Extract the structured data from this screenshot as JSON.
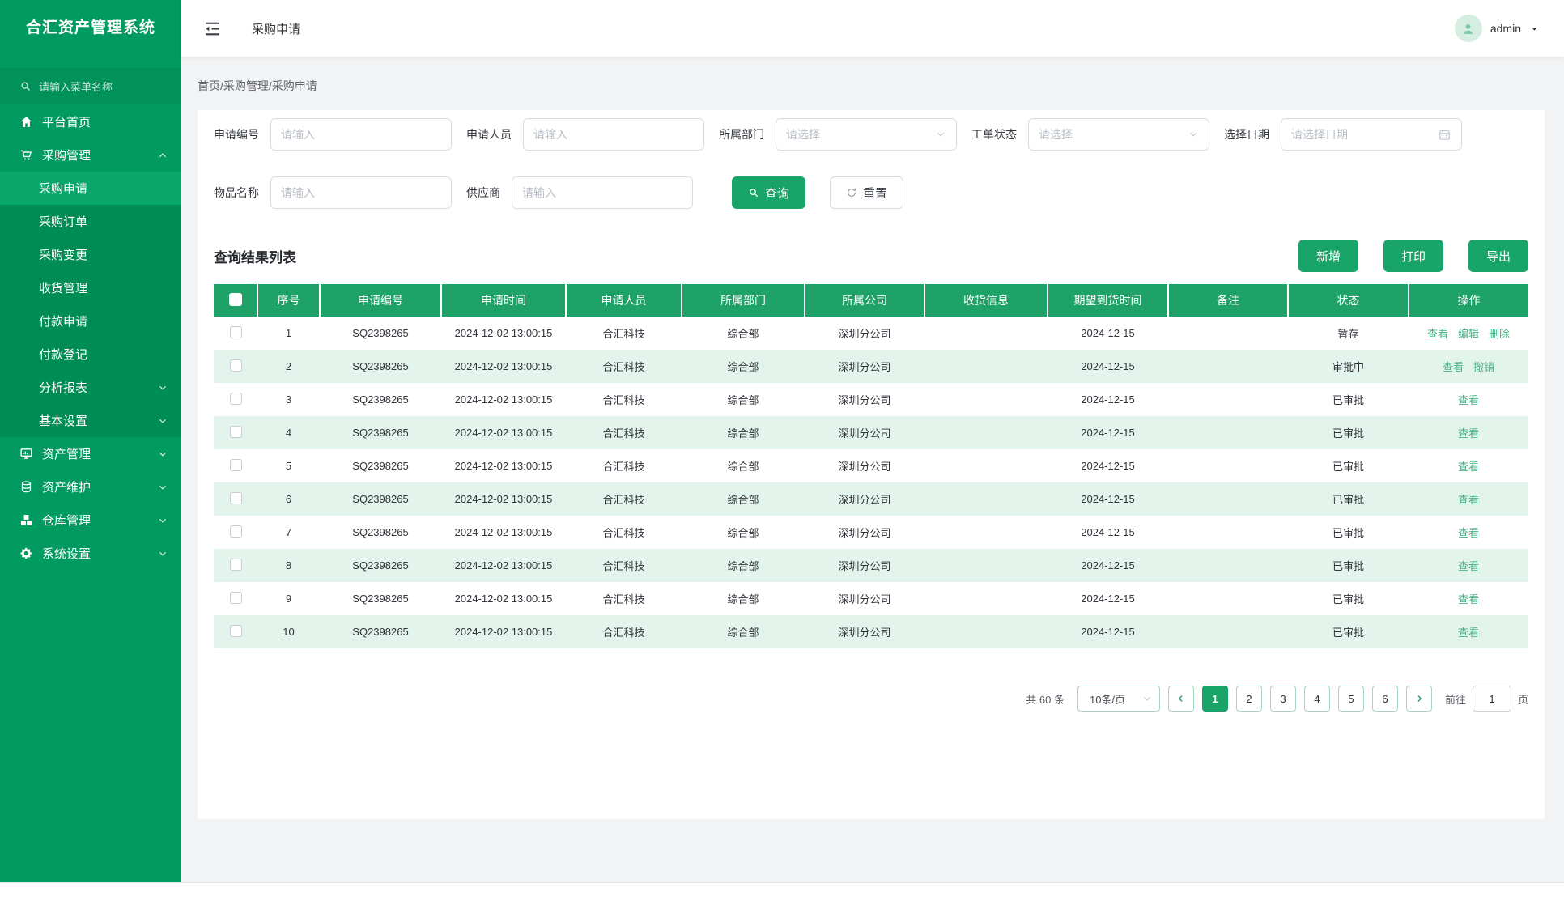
{
  "app_title": "合汇资产管理系统",
  "colors": {
    "primary": "#18a368",
    "sidebar": "#019a60",
    "submenu": "#008c55",
    "zebra": "#e3f4ec",
    "link": "#46b185"
  },
  "topbar": {
    "tab": "采购申请",
    "user": "admin",
    "collapse_icon": "collapse-icon",
    "user_caret_icon": "caret-down-icon",
    "avatar_icon": "person-icon"
  },
  "sidebar": {
    "search_placeholder": "请输入菜单名称",
    "search_icon": "search-icon",
    "menu": [
      {
        "label": "平台首页",
        "icon": "home"
      },
      {
        "label": "采购管理",
        "icon": "cart",
        "chevron": "up",
        "children": [
          {
            "label": "采购申请",
            "active": true
          },
          {
            "label": "采购订单"
          },
          {
            "label": "采购变更"
          },
          {
            "label": "收货管理"
          },
          {
            "label": "付款申请"
          },
          {
            "label": "付款登记"
          },
          {
            "label": "分析报表",
            "chevron": "down"
          },
          {
            "label": "基本设置",
            "chevron": "down"
          }
        ]
      },
      {
        "label": "资产管理",
        "icon": "monitor",
        "chevron": "down"
      },
      {
        "label": "资产维护",
        "icon": "database",
        "chevron": "down"
      },
      {
        "label": "仓库管理",
        "icon": "boxes",
        "chevron": "down"
      },
      {
        "label": "系统设置",
        "icon": "gear",
        "chevron": "down"
      }
    ]
  },
  "breadcrumb": "首页/采购管理/采购申请",
  "filters": {
    "rows": [
      [
        {
          "label": "申请编号",
          "type": "input",
          "placeholder": "请输入"
        },
        {
          "label": "申请人员",
          "type": "input",
          "placeholder": "请输入"
        },
        {
          "label": "所属部门",
          "type": "select",
          "placeholder": "请选择"
        },
        {
          "label": "工单状态",
          "type": "select",
          "placeholder": "请选择"
        },
        {
          "label": "选择日期",
          "type": "date",
          "placeholder": "请选择日期"
        }
      ],
      [
        {
          "label": "物品名称",
          "type": "input",
          "placeholder": "请输入"
        },
        {
          "label": "供应商",
          "type": "input",
          "placeholder": "请输入"
        }
      ]
    ],
    "search_button": "查询",
    "reset_button": "重置"
  },
  "results": {
    "title": "查询结果列表",
    "toolbar": [
      "新增",
      "打印",
      "导出"
    ],
    "table": {
      "columns": [
        "序号",
        "申请编号",
        "申请时间",
        "申请人员",
        "所属部门",
        "所属公司",
        "收货信息",
        "期望到货时间",
        "备注",
        "状态",
        "操作"
      ],
      "rows": [
        {
          "cells": [
            "1",
            "SQ2398265",
            "2024-12-02 13:00:15",
            "合汇科技",
            "综合部",
            "深圳分公司",
            "",
            "2024-12-15",
            "",
            "暂存"
          ],
          "actions": [
            "查看",
            "编辑",
            "删除"
          ]
        },
        {
          "cells": [
            "2",
            "SQ2398265",
            "2024-12-02 13:00:15",
            "合汇科技",
            "综合部",
            "深圳分公司",
            "",
            "2024-12-15",
            "",
            "审批中"
          ],
          "actions": [
            "查看",
            "撤销"
          ]
        },
        {
          "cells": [
            "3",
            "SQ2398265",
            "2024-12-02 13:00:15",
            "合汇科技",
            "综合部",
            "深圳分公司",
            "",
            "2024-12-15",
            "",
            "已审批"
          ],
          "actions": [
            "查看"
          ]
        },
        {
          "cells": [
            "4",
            "SQ2398265",
            "2024-12-02 13:00:15",
            "合汇科技",
            "综合部",
            "深圳分公司",
            "",
            "2024-12-15",
            "",
            "已审批"
          ],
          "actions": [
            "查看"
          ]
        },
        {
          "cells": [
            "5",
            "SQ2398265",
            "2024-12-02 13:00:15",
            "合汇科技",
            "综合部",
            "深圳分公司",
            "",
            "2024-12-15",
            "",
            "已审批"
          ],
          "actions": [
            "查看"
          ]
        },
        {
          "cells": [
            "6",
            "SQ2398265",
            "2024-12-02 13:00:15",
            "合汇科技",
            "综合部",
            "深圳分公司",
            "",
            "2024-12-15",
            "",
            "已审批"
          ],
          "actions": [
            "查看"
          ]
        },
        {
          "cells": [
            "7",
            "SQ2398265",
            "2024-12-02 13:00:15",
            "合汇科技",
            "综合部",
            "深圳分公司",
            "",
            "2024-12-15",
            "",
            "已审批"
          ],
          "actions": [
            "查看"
          ]
        },
        {
          "cells": [
            "8",
            "SQ2398265",
            "2024-12-02 13:00:15",
            "合汇科技",
            "综合部",
            "深圳分公司",
            "",
            "2024-12-15",
            "",
            "已审批"
          ],
          "actions": [
            "查看"
          ]
        },
        {
          "cells": [
            "9",
            "SQ2398265",
            "2024-12-02 13:00:15",
            "合汇科技",
            "综合部",
            "深圳分公司",
            "",
            "2024-12-15",
            "",
            "已审批"
          ],
          "actions": [
            "查看"
          ]
        },
        {
          "cells": [
            "10",
            "SQ2398265",
            "2024-12-02 13:00:15",
            "合汇科技",
            "综合部",
            "深圳分公司",
            "",
            "2024-12-15",
            "",
            "已审批"
          ],
          "actions": [
            "查看"
          ]
        }
      ]
    }
  },
  "pagination": {
    "total": "共 60 条",
    "page_size": "10条/页",
    "pages": [
      "1",
      "2",
      "3",
      "4",
      "5",
      "6"
    ],
    "current": "1",
    "goto_label": "前往",
    "goto_value": "1",
    "goto_suffix": "页"
  }
}
